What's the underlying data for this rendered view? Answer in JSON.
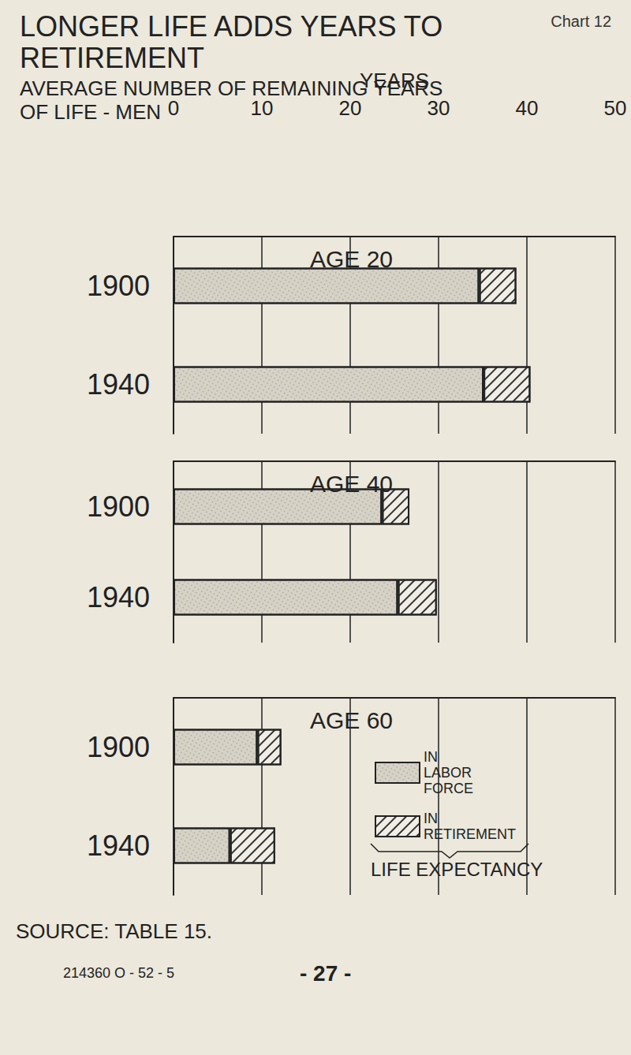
{
  "header": {
    "title": "LONGER LIFE ADDS YEARS TO RETIREMENT",
    "subtitle": "AVERAGE NUMBER OF REMAINING YEARS OF LIFE - MEN",
    "chart_number": "Chart 12"
  },
  "legend_caption": "LIFE EXPECTANCY",
  "footer": {
    "source": "SOURCE: TABLE 15.",
    "print_code": "214360 O - 52 - 5",
    "page": "- 27 -"
  },
  "chart_data": [
    {
      "type": "bar",
      "title": "AGE 20",
      "x_label": "YEARS",
      "orientation": "horizontal",
      "stacked": true,
      "grid": true,
      "tick_labels": "x",
      "categories": [
        "1900",
        "1940"
      ],
      "series": [
        {
          "name": "IN LABOR FORCE",
          "color": "#d6d2c6",
          "values": [
            34.6,
            35.1
          ]
        },
        {
          "name": "IN RETIREMENT",
          "color": "#f1eee6",
          "values": [
            4.2,
            5.3
          ]
        }
      ],
      "xlim": [
        0,
        50
      ],
      "xticks": [
        0,
        10,
        20,
        30,
        40,
        50
      ]
    },
    {
      "type": "bar",
      "title": "AGE 40",
      "orientation": "horizontal",
      "stacked": true,
      "grid": true,
      "tick_labels": false,
      "categories": [
        "1900",
        "1940"
      ],
      "series": [
        {
          "name": "IN LABOR FORCE",
          "color": "#d6d2c6",
          "values": [
            23.6,
            25.4
          ]
        },
        {
          "name": "IN RETIREMENT",
          "color": "#f1eee6",
          "values": [
            3.1,
            4.4
          ]
        }
      ],
      "xlim": [
        0,
        50
      ],
      "xticks": [
        0,
        10,
        20,
        30,
        40,
        50
      ]
    },
    {
      "type": "bar",
      "title": "AGE 60",
      "orientation": "horizontal",
      "stacked": true,
      "grid": true,
      "tick_labels": false,
      "legend": "right",
      "categories": [
        "1900",
        "1940"
      ],
      "series": [
        {
          "name": "IN LABOR FORCE",
          "color": "#d6d2c6",
          "values": [
            9.5,
            6.4
          ]
        },
        {
          "name": "IN RETIREMENT",
          "color": "#f1eee6",
          "values": [
            2.7,
            5.1
          ]
        }
      ],
      "xlim": [
        0,
        50
      ],
      "xticks": [
        0,
        10,
        20,
        30,
        40,
        50
      ]
    }
  ]
}
